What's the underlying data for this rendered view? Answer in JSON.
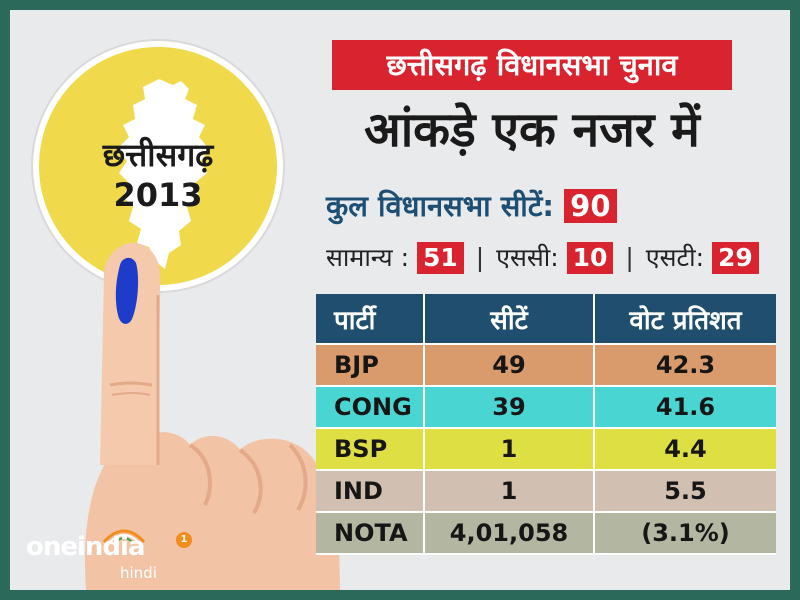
{
  "badge": {
    "region_line1": "छत्तीसगढ़",
    "region_line2": "2013"
  },
  "header": {
    "title": "छत्तीसगढ़ विधानसभा चुनाव",
    "subtitle": "आंकड़े एक नजर में"
  },
  "summary": {
    "total_label": "कुल विधानसभा सीटें:",
    "total_value": "90",
    "general_label": "सामान्य :",
    "general_value": "51",
    "sc_label": "एससी:",
    "sc_value": "10",
    "st_label": "एसटी:",
    "st_value": "29"
  },
  "table": {
    "headers": [
      "पार्टी",
      "सीटें",
      "वोट प्रतिशत"
    ],
    "rows": [
      {
        "party": "BJP",
        "seats": "49",
        "vote": "42.3",
        "color": "#d99a6c"
      },
      {
        "party": "CONG",
        "seats": "39",
        "vote": "41.6",
        "color": "#49d6d2"
      },
      {
        "party": "BSP",
        "seats": "1",
        "vote": "4.4",
        "color": "#dedf42"
      },
      {
        "party": "IND",
        "seats": "1",
        "vote": "5.5",
        "color": "#d1c0b2"
      },
      {
        "party": "NOTA",
        "seats": "4,01,058",
        "vote": "(3.1%)",
        "color": "#b3b6a0"
      }
    ]
  },
  "logo": {
    "brand": "oneindia",
    "sub": "hindi",
    "badge": "1"
  },
  "colors": {
    "accent_red": "#d9232e",
    "header_navy": "#1f4e6e",
    "circle_yellow": "#f0d94a",
    "frame_green": "#2b6a5a",
    "ink_blue": "#1f3bc9"
  }
}
